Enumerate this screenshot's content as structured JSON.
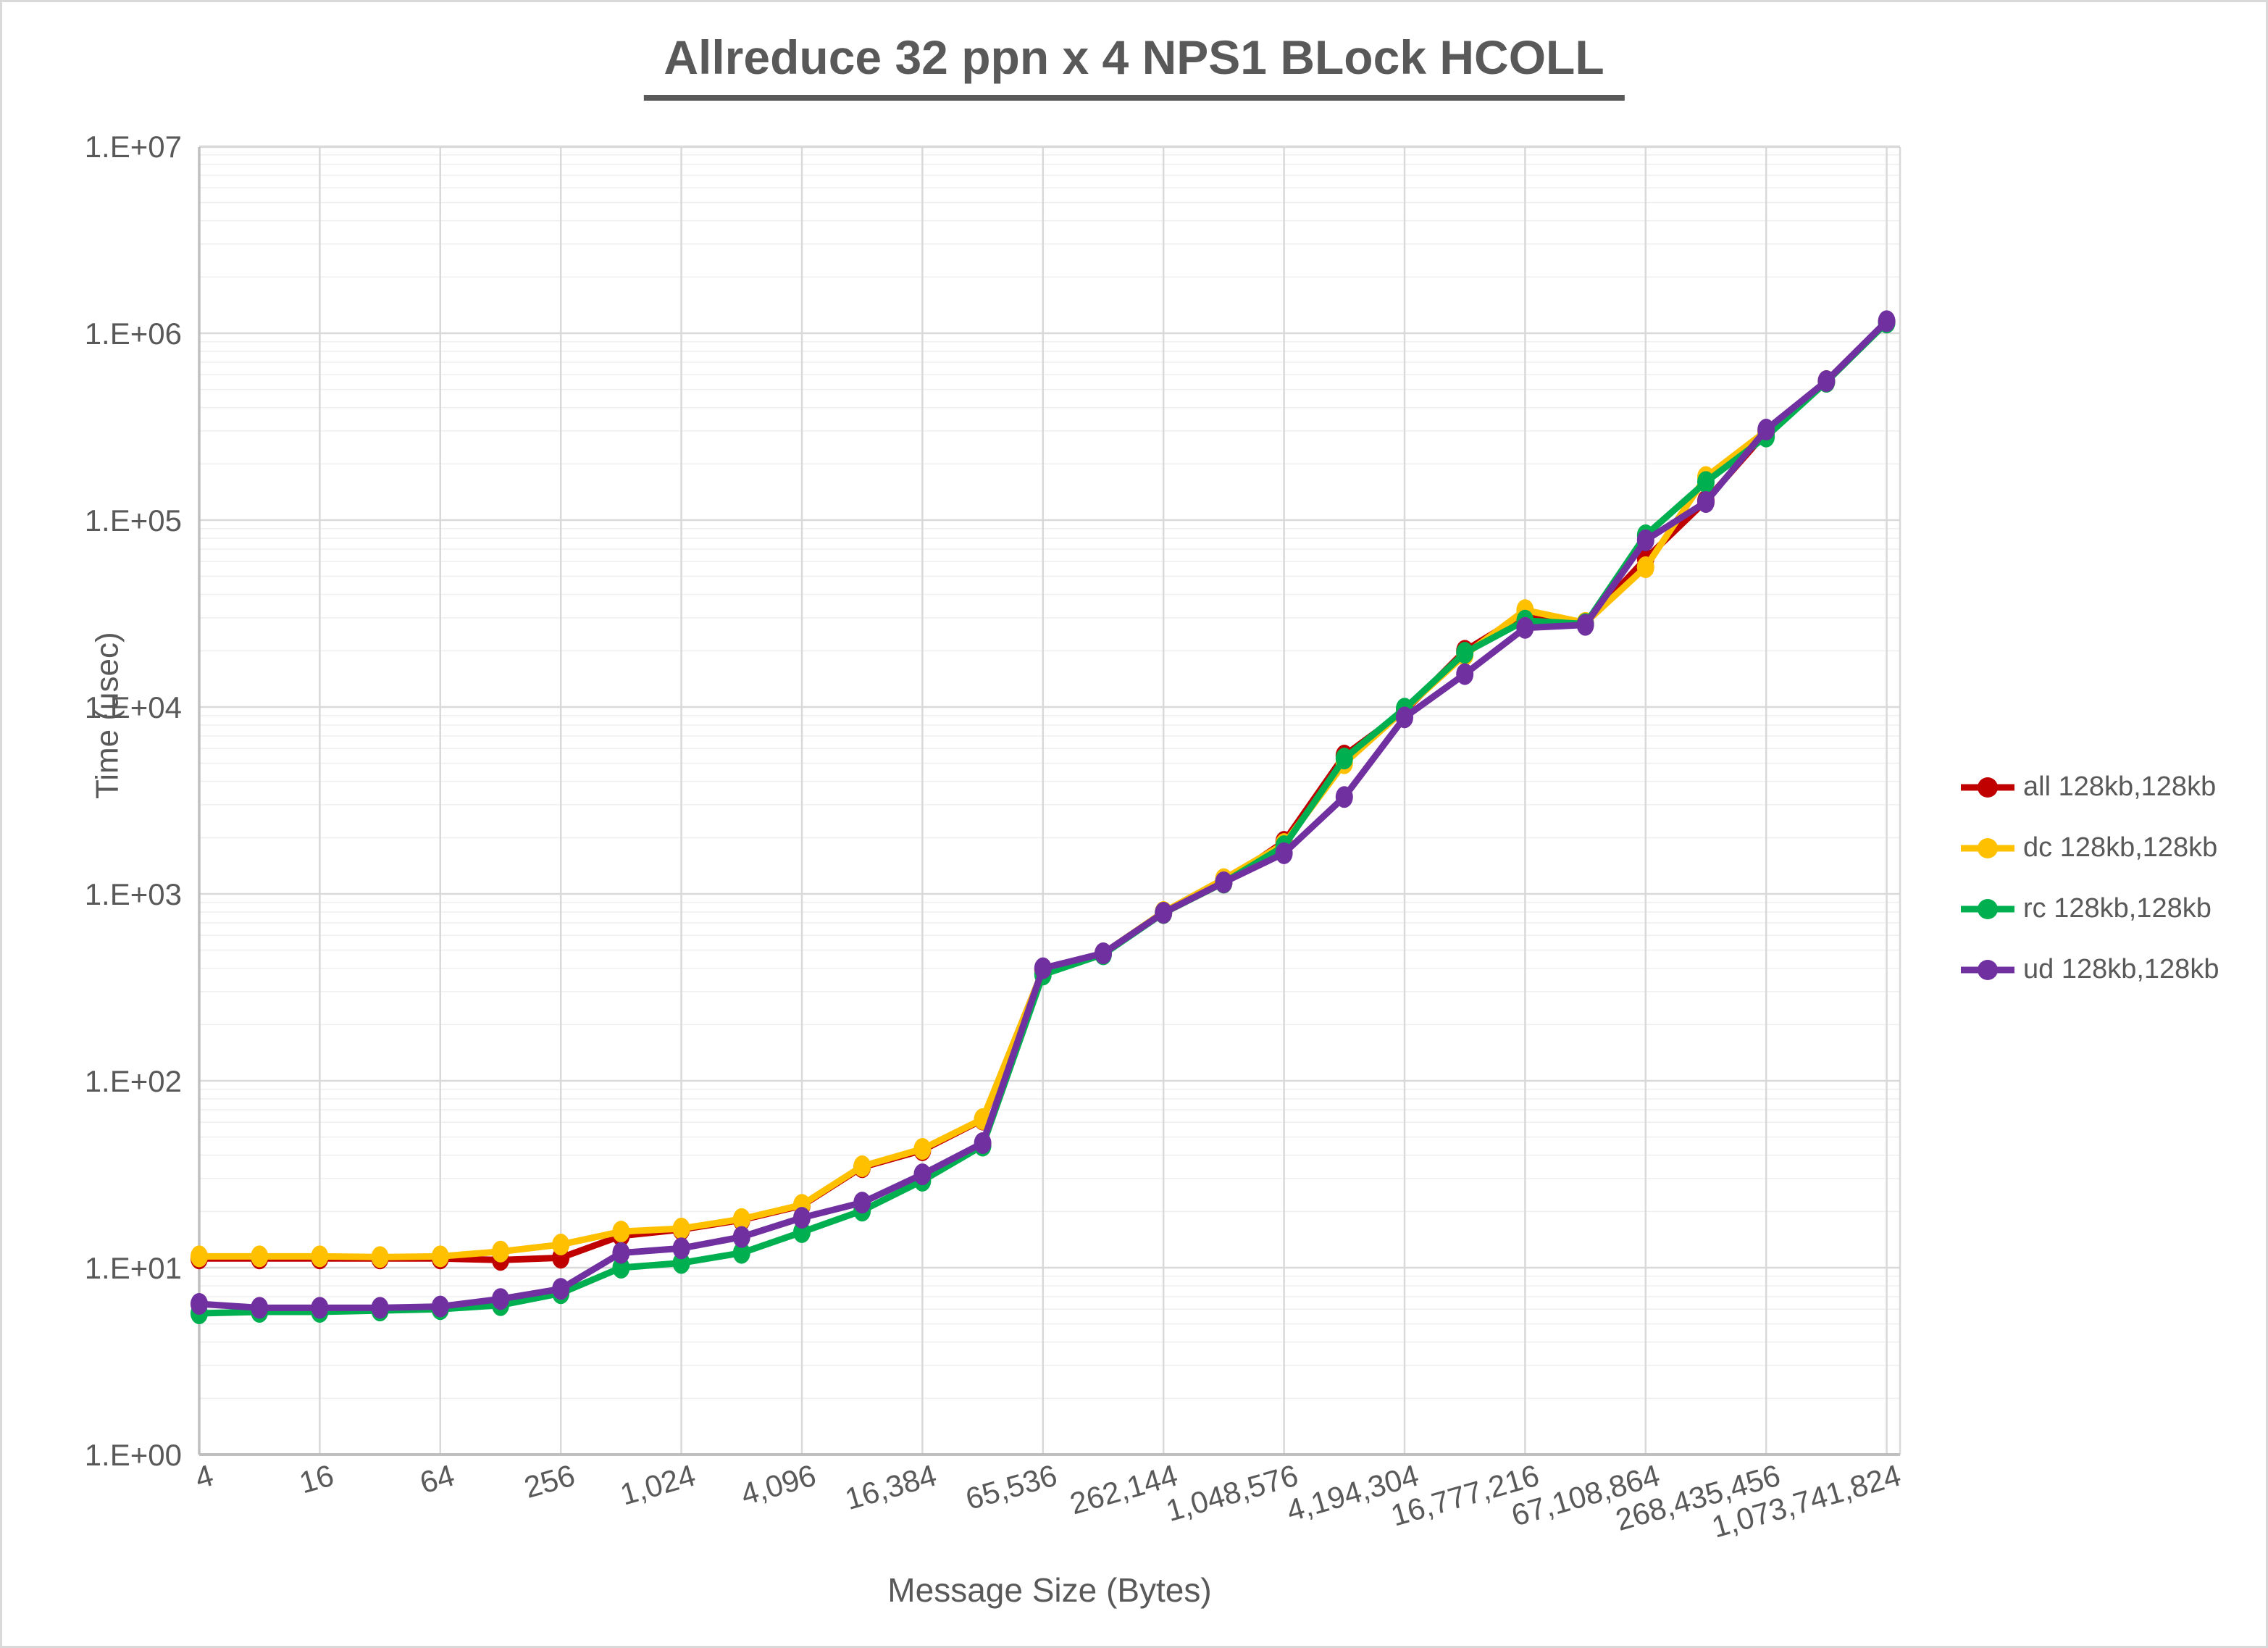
{
  "title": "Allreduce 32 ppn x 4 NPS1 BLock HCOLL",
  "x_axis": {
    "title": "Message Size (Bytes)",
    "tick_labels": [
      "4",
      "16",
      "64",
      "256",
      "1,024",
      "4,096",
      "16,384",
      "65,536",
      "262,144",
      "1,048,576",
      "4,194,304",
      "16,777,216",
      "67,108,864",
      "268,435,456",
      "1,073,741,824"
    ]
  },
  "y_axis": {
    "title": "Time (usec)",
    "tick_labels": [
      "1.E+00",
      "1.E+01",
      "1.E+02",
      "1.E+03",
      "1.E+04",
      "1.E+05",
      "1.E+06",
      "1.E+07"
    ]
  },
  "legend": [
    {
      "label": "all 128kb,128kb",
      "color": "#C00000"
    },
    {
      "label": "dc 128kb,128kb",
      "color": "#FFC000"
    },
    {
      "label": "rc 128kb,128kb",
      "color": "#00B050"
    },
    {
      "label": "ud 128kb,128kb",
      "color": "#7030A0"
    }
  ],
  "colors": {
    "text_gray": "#595959",
    "gridline_major": "#d9d9d9",
    "gridline_minor": "#efefef",
    "axis_line": "#bfbfbf"
  },
  "chart_data": {
    "type": "line",
    "x_scale": "log2-category",
    "y_scale": "log10",
    "ylim": [
      1,
      10000000
    ],
    "grid": "major-and-log-minor",
    "legend_position": "right",
    "categories": [
      4,
      8,
      16,
      32,
      64,
      128,
      256,
      512,
      1024,
      2048,
      4096,
      8192,
      16384,
      32768,
      65536,
      131072,
      262144,
      524288,
      1048576,
      2097152,
      4194304,
      8388608,
      16777216,
      33554432,
      67108864,
      134217728,
      268435456,
      536870912,
      1073741824
    ],
    "series": [
      {
        "name": "all 128kb,128kb",
        "color": "#C00000",
        "values": [
          11.2,
          11.2,
          11.2,
          11.2,
          11.2,
          11.0,
          11.3,
          14.8,
          16.0,
          18.0,
          21.5,
          34.5,
          42.5,
          62,
          390,
          480,
          790,
          1150,
          1900,
          5500,
          9500,
          20000,
          31500,
          28000,
          62000,
          127000,
          295000,
          550000,
          1150000
        ]
      },
      {
        "name": "dc 128kb,128kb",
        "color": "#FFC000",
        "values": [
          11.5,
          11.5,
          11.5,
          11.4,
          11.5,
          12.2,
          13.3,
          15.6,
          16.2,
          18.2,
          21.7,
          34.9,
          43.2,
          62.4,
          390,
          480,
          800,
          1200,
          1850,
          5000,
          9700,
          19000,
          33000,
          28200,
          56000,
          170000,
          300000,
          555000,
          1150000
        ]
      },
      {
        "name": "rc 128kb,128kb",
        "color": "#00B050",
        "values": [
          5.7,
          5.8,
          5.8,
          5.9,
          6.0,
          6.3,
          7.3,
          10.0,
          10.6,
          12.0,
          15.5,
          20.2,
          29.2,
          45.0,
          370,
          475,
          790,
          1150,
          1800,
          5300,
          9800,
          19500,
          29000,
          27800,
          83000,
          160000,
          280000,
          550000,
          1140000
        ]
      },
      {
        "name": "ud 128kb,128kb",
        "color": "#7030A0",
        "values": [
          6.4,
          6.1,
          6.1,
          6.1,
          6.2,
          6.8,
          7.7,
          12.0,
          12.7,
          14.6,
          18.5,
          22.3,
          31.6,
          46.4,
          400,
          481,
          793,
          1154,
          1650,
          3300,
          8800,
          15000,
          26500,
          27500,
          78000,
          125000,
          305000,
          555000,
          1160000
        ]
      }
    ]
  }
}
